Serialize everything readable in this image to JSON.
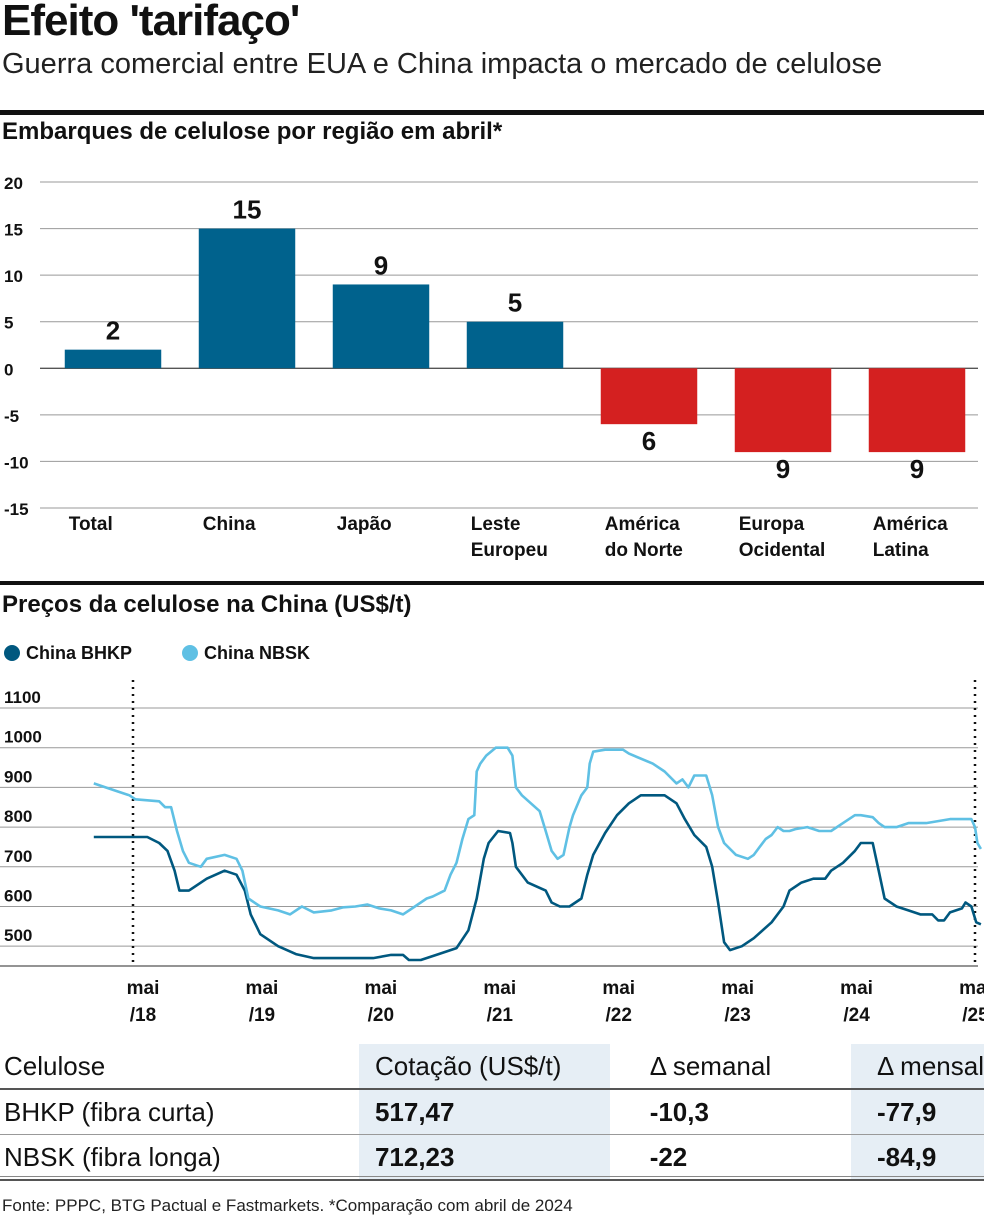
{
  "header": {
    "title": "Efeito 'tarifaço'",
    "subtitle": "Guerra comercial entre EUA e China impacta o mercado de celulose"
  },
  "colors": {
    "positive_bar": "#00628d",
    "negative_bar": "#d42020",
    "bhkp_line": "#00587f",
    "nbsk_line": "#5fc0e4"
  },
  "chart_data": [
    {
      "type": "bar",
      "title": "Embarques de celulose por região em abril*",
      "categories": [
        "Total",
        "China",
        "Japão",
        "Leste Europeu",
        "América do Norte",
        "Europa Ocidental",
        "América Latina"
      ],
      "category_lines": [
        [
          "Total"
        ],
        [
          "China"
        ],
        [
          "Japão"
        ],
        [
          "Leste",
          "Europeu"
        ],
        [
          "América",
          "do Norte"
        ],
        [
          "Europa",
          "Ocidental"
        ],
        [
          "América",
          "Latina"
        ]
      ],
      "values": [
        2,
        15,
        9,
        5,
        -6,
        -9,
        -9
      ],
      "data_labels": [
        "2",
        "15",
        "9",
        "5",
        "6",
        "9",
        "9"
      ],
      "ylim": [
        -15,
        20
      ],
      "yticks": [
        20,
        15,
        10,
        5,
        0,
        -5,
        -10,
        -15
      ],
      "grid": true
    },
    {
      "type": "line",
      "title": "Preços da celulose na China (US$/t)",
      "ylim": [
        450,
        1100
      ],
      "yticks": [
        1100,
        1000,
        900,
        800,
        700,
        600,
        500
      ],
      "xlim": [
        2018.33,
        2025.41
      ],
      "xticks": [
        {
          "x": 2018.33,
          "lines": [
            "mai",
            "/18"
          ]
        },
        {
          "x": 2019.33,
          "lines": [
            "mai",
            "/19"
          ]
        },
        {
          "x": 2020.33,
          "lines": [
            "mai",
            "/20"
          ]
        },
        {
          "x": 2021.33,
          "lines": [
            "mai",
            "/21"
          ]
        },
        {
          "x": 2022.33,
          "lines": [
            "mai",
            "/22"
          ]
        },
        {
          "x": 2023.33,
          "lines": [
            "mai",
            "/23"
          ]
        },
        {
          "x": 2024.33,
          "lines": [
            "mai",
            "/24"
          ]
        },
        {
          "x": 2025.33,
          "lines": [
            "mai",
            "/25"
          ]
        }
      ],
      "grid": true,
      "legend_position": "top-left",
      "series": [
        {
          "name": "China BHKP",
          "color": "#00587f",
          "points": [
            [
              2018.0,
              775
            ],
            [
              2018.25,
              775
            ],
            [
              2018.45,
              775
            ],
            [
              2018.55,
              760
            ],
            [
              2018.62,
              740
            ],
            [
              2018.68,
              690
            ],
            [
              2018.72,
              640
            ],
            [
              2018.8,
              640
            ],
            [
              2018.95,
              670
            ],
            [
              2019.1,
              690
            ],
            [
              2019.2,
              680
            ],
            [
              2019.27,
              640
            ],
            [
              2019.32,
              580
            ],
            [
              2019.4,
              530
            ],
            [
              2019.55,
              500
            ],
            [
              2019.7,
              480
            ],
            [
              2019.85,
              470
            ],
            [
              2020.0,
              470
            ],
            [
              2020.2,
              470
            ],
            [
              2020.35,
              470
            ],
            [
              2020.5,
              478
            ],
            [
              2020.6,
              478
            ],
            [
              2020.65,
              465
            ],
            [
              2020.75,
              465
            ],
            [
              2020.9,
              480
            ],
            [
              2021.05,
              495
            ],
            [
              2021.15,
              540
            ],
            [
              2021.22,
              620
            ],
            [
              2021.28,
              720
            ],
            [
              2021.32,
              760
            ],
            [
              2021.4,
              790
            ],
            [
              2021.5,
              785
            ],
            [
              2021.52,
              760
            ],
            [
              2021.55,
              700
            ],
            [
              2021.65,
              660
            ],
            [
              2021.8,
              640
            ],
            [
              2021.85,
              610
            ],
            [
              2021.92,
              600
            ],
            [
              2022.0,
              600
            ],
            [
              2022.1,
              620
            ],
            [
              2022.15,
              680
            ],
            [
              2022.2,
              730
            ],
            [
              2022.3,
              785
            ],
            [
              2022.4,
              830
            ],
            [
              2022.5,
              860
            ],
            [
              2022.6,
              880
            ],
            [
              2022.8,
              880
            ],
            [
              2022.9,
              860
            ],
            [
              2022.97,
              820
            ],
            [
              2023.05,
              780
            ],
            [
              2023.15,
              750
            ],
            [
              2023.2,
              700
            ],
            [
              2023.25,
              610
            ],
            [
              2023.3,
              510
            ],
            [
              2023.35,
              490
            ],
            [
              2023.45,
              500
            ],
            [
              2023.55,
              520
            ],
            [
              2023.7,
              560
            ],
            [
              2023.8,
              600
            ],
            [
              2023.85,
              640
            ],
            [
              2023.95,
              660
            ],
            [
              2024.05,
              670
            ],
            [
              2024.15,
              670
            ],
            [
              2024.2,
              690
            ],
            [
              2024.3,
              710
            ],
            [
              2024.4,
              740
            ],
            [
              2024.45,
              760
            ],
            [
              2024.55,
              760
            ],
            [
              2024.6,
              690
            ],
            [
              2024.65,
              620
            ],
            [
              2024.75,
              600
            ],
            [
              2024.85,
              590
            ],
            [
              2024.95,
              580
            ],
            [
              2025.05,
              580
            ],
            [
              2025.1,
              565
            ],
            [
              2025.15,
              565
            ],
            [
              2025.2,
              585
            ],
            [
              2025.3,
              595
            ],
            [
              2025.33,
              610
            ],
            [
              2025.38,
              600
            ],
            [
              2025.42,
              560
            ],
            [
              2025.46,
              555
            ]
          ]
        },
        {
          "name": "China NBSK",
          "color": "#5fc0e4",
          "points": [
            [
              2018.0,
              910
            ],
            [
              2018.1,
              900
            ],
            [
              2018.2,
              890
            ],
            [
              2018.3,
              880
            ],
            [
              2018.35,
              870
            ],
            [
              2018.55,
              865
            ],
            [
              2018.6,
              850
            ],
            [
              2018.65,
              850
            ],
            [
              2018.7,
              790
            ],
            [
              2018.75,
              740
            ],
            [
              2018.8,
              710
            ],
            [
              2018.9,
              700
            ],
            [
              2018.95,
              720
            ],
            [
              2019.1,
              730
            ],
            [
              2019.2,
              720
            ],
            [
              2019.25,
              690
            ],
            [
              2019.3,
              620
            ],
            [
              2019.4,
              600
            ],
            [
              2019.55,
              590
            ],
            [
              2019.65,
              580
            ],
            [
              2019.75,
              600
            ],
            [
              2019.85,
              585
            ],
            [
              2020.0,
              590
            ],
            [
              2020.1,
              598
            ],
            [
              2020.2,
              600
            ],
            [
              2020.3,
              605
            ],
            [
              2020.4,
              595
            ],
            [
              2020.5,
              590
            ],
            [
              2020.6,
              580
            ],
            [
              2020.7,
              600
            ],
            [
              2020.8,
              620
            ],
            [
              2020.85,
              625
            ],
            [
              2020.95,
              640
            ],
            [
              2021.0,
              680
            ],
            [
              2021.05,
              710
            ],
            [
              2021.1,
              770
            ],
            [
              2021.15,
              820
            ],
            [
              2021.2,
              830
            ],
            [
              2021.22,
              940
            ],
            [
              2021.25,
              960
            ],
            [
              2021.3,
              980
            ],
            [
              2021.38,
              1000
            ],
            [
              2021.48,
              1000
            ],
            [
              2021.52,
              980
            ],
            [
              2021.55,
              900
            ],
            [
              2021.6,
              880
            ],
            [
              2021.75,
              840
            ],
            [
              2021.8,
              790
            ],
            [
              2021.85,
              740
            ],
            [
              2021.9,
              720
            ],
            [
              2021.95,
              730
            ],
            [
              2022.0,
              800
            ],
            [
              2022.03,
              830
            ],
            [
              2022.1,
              880
            ],
            [
              2022.15,
              900
            ],
            [
              2022.17,
              960
            ],
            [
              2022.2,
              990
            ],
            [
              2022.3,
              995
            ],
            [
              2022.45,
              995
            ],
            [
              2022.5,
              985
            ],
            [
              2022.7,
              960
            ],
            [
              2022.8,
              940
            ],
            [
              2022.9,
              910
            ],
            [
              2022.95,
              920
            ],
            [
              2023.0,
              900
            ],
            [
              2023.05,
              930
            ],
            [
              2023.15,
              930
            ],
            [
              2023.2,
              880
            ],
            [
              2023.25,
              800
            ],
            [
              2023.3,
              760
            ],
            [
              2023.4,
              730
            ],
            [
              2023.5,
              720
            ],
            [
              2023.55,
              730
            ],
            [
              2023.6,
              750
            ],
            [
              2023.65,
              770
            ],
            [
              2023.7,
              780
            ],
            [
              2023.75,
              800
            ],
            [
              2023.8,
              790
            ],
            [
              2023.85,
              790
            ],
            [
              2023.9,
              795
            ],
            [
              2024.0,
              800
            ],
            [
              2024.1,
              790
            ],
            [
              2024.2,
              790
            ],
            [
              2024.3,
              810
            ],
            [
              2024.4,
              830
            ],
            [
              2024.45,
              830
            ],
            [
              2024.55,
              825
            ],
            [
              2024.6,
              810
            ],
            [
              2024.65,
              800
            ],
            [
              2024.75,
              800
            ],
            [
              2024.8,
              805
            ],
            [
              2024.85,
              810
            ],
            [
              2025.0,
              810
            ],
            [
              2025.1,
              815
            ],
            [
              2025.2,
              820
            ],
            [
              2025.3,
              820
            ],
            [
              2025.38,
              820
            ],
            [
              2025.41,
              800
            ],
            [
              2025.43,
              760
            ],
            [
              2025.46,
              745
            ]
          ]
        }
      ]
    }
  ],
  "legend": {
    "bhkp": "China BHKP",
    "nbsk": "China NBSK"
  },
  "table": {
    "headers": [
      "Celulose",
      "Cotação (US$/t)",
      "Δ semanal",
      "Δ mensal"
    ],
    "rows": [
      {
        "name": "BHKP (fibra curta)",
        "price": "517,47",
        "weekly": "-10,3",
        "monthly": "-77,9"
      },
      {
        "name": "NBSK (fibra longa)",
        "price": "712,23",
        "weekly": "-22",
        "monthly": "-84,9"
      }
    ]
  },
  "footer": {
    "source": "Fonte: PPPC, BTG Pactual e Fastmarkets. *Comparação com abril de 2024"
  }
}
